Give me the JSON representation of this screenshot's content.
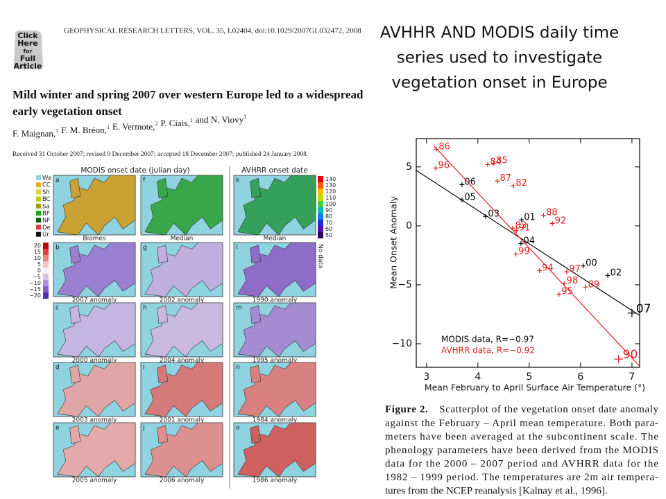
{
  "slide_title": [
    "AVHHR AND MODIS daily time",
    "series used to investigate",
    "vegetation onset in Europe"
  ],
  "logo": [
    "Click",
    "Here",
    "for",
    "Full",
    "Article"
  ],
  "journal": "GEOPHYSICAL RESEARCH LETTERS, VOL. 35, L02404, doi:10.1029/2007GL032472, 2008",
  "paper_title": [
    "Mild winter and spring 2007 over western Europe led to a widespread",
    "early vegetation onset"
  ],
  "authors": [
    {
      "name": "F. Maignan,",
      "affiliation": "1"
    },
    {
      "name": "F. M. Bréon,",
      "affiliation": "1"
    },
    {
      "name": "E. Vermote,",
      "affiliation": "2"
    },
    {
      "name": "P. Ciais,",
      "affiliation": "1"
    },
    {
      "name": "and N. Viovy",
      "affiliation": "1"
    }
  ],
  "received": "Received 31 October 2007; revised 9 December 2007; accepted 18 December 2007; published 24 January 2008.",
  "maps": {
    "headers": [
      "MODIS onset date (julian day)",
      "AVHRR onset date"
    ],
    "biomes": [
      {
        "code": "Wa",
        "color": "#8fd3e0"
      },
      {
        "code": "CC",
        "color": "#f5a623"
      },
      {
        "code": "Sh",
        "color": "#e6d23a"
      },
      {
        "code": "BC",
        "color": "#c7c41a"
      },
      {
        "code": "Sa",
        "color": "#a89a10"
      },
      {
        "code": "BF",
        "color": "#18a318"
      },
      {
        "code": "NF",
        "color": "#0b5e0b"
      },
      {
        "code": "De",
        "color": "#d94040"
      },
      {
        "code": "Ur",
        "color": "#111111"
      }
    ],
    "date_scale": [
      "140",
      "130",
      "120",
      "110",
      "100",
      "90",
      "80",
      "70",
      "60",
      "50"
    ],
    "anomaly_scale": [
      "20",
      "15",
      "10",
      "5",
      "0",
      "−5",
      "−10",
      "−15",
      "−20"
    ],
    "no_data": "No data",
    "rows": [
      [
        {
          "letter": "a",
          "caption": "Biomes",
          "color": "#c9a233"
        },
        {
          "letter": "f",
          "caption": "Median",
          "color": "#3aa64a"
        },
        {
          "letter": "k",
          "caption": "Median",
          "color": "#35a05a"
        }
      ],
      [
        {
          "letter": "b",
          "caption": "2007 anomaly",
          "color": "#9a7fd0"
        },
        {
          "letter": "g",
          "caption": "2002 anomaly",
          "color": "#c0b0e0"
        },
        {
          "letter": "l",
          "caption": "1990 anomaly",
          "color": "#8e6cc8"
        }
      ],
      [
        {
          "letter": "c",
          "caption": "2000 anomaly",
          "color": "#c5b5e2"
        },
        {
          "letter": "h",
          "caption": "2004 anomaly",
          "color": "#c8badf"
        },
        {
          "letter": "m",
          "caption": "1995 anomaly",
          "color": "#a58bd2"
        }
      ],
      [
        {
          "letter": "d",
          "caption": "2003 anomaly",
          "color": "#e0a6a6"
        },
        {
          "letter": "i",
          "caption": "2001 anomaly",
          "color": "#d47a7a"
        },
        {
          "letter": "n",
          "caption": "1984 anomaly",
          "color": "#d98080"
        }
      ],
      [
        {
          "letter": "e",
          "caption": "2005 anomaly",
          "color": "#e4a9a9"
        },
        {
          "letter": "j",
          "caption": "2006 anomaly",
          "color": "#dc9090"
        },
        {
          "letter": "o",
          "caption": "1986 anomaly",
          "color": "#d06060"
        }
      ]
    ]
  },
  "chart_data": {
    "type": "scatter",
    "xlabel": "Mean February to April Surface Air Temperature (°)",
    "ylabel": "Mean Onset Anomaly",
    "xlim": [
      2.8,
      7.15
    ],
    "ylim": [
      -12,
      7.4
    ],
    "xticks": [
      3,
      4,
      5,
      6,
      7
    ],
    "yticks": [
      5,
      0,
      {
        "value": -5,
        "label": "−5"
      },
      {
        "value": -10,
        "label": "−10"
      }
    ],
    "series": [
      {
        "name": "MODIS data, R=−0.97",
        "color": "#000000",
        "labels": [
          "06",
          "05",
          "03",
          "01",
          "04",
          "00",
          "02",
          "07"
        ],
        "x": [
          3.69,
          3.69,
          4.15,
          4.85,
          4.84,
          6.05,
          6.53,
          7.0
        ],
        "values": [
          3.5,
          2.2,
          0.8,
          0.5,
          -1.5,
          -3.4,
          -4.2,
          -7.4
        ],
        "fit": {
          "x": [
            2.8,
            7.15
          ],
          "y": [
            4.7,
            -7.6
          ]
        }
      },
      {
        "name": "AVHRR data, R=−0.92",
        "color": "#e02020",
        "labels": [
          "86",
          "96",
          "84",
          "85",
          "87",
          "82",
          "88",
          "92",
          "83",
          "91",
          "99",
          "94",
          "97",
          "98",
          "95",
          "89",
          "90"
        ],
        "x": [
          3.19,
          3.18,
          4.19,
          4.31,
          4.38,
          4.69,
          5.28,
          5.45,
          4.68,
          4.75,
          4.74,
          5.2,
          5.73,
          5.68,
          5.58,
          6.1,
          6.74
        ],
        "values": [
          6.5,
          4.9,
          5.2,
          5.3,
          3.8,
          3.4,
          0.9,
          0.2,
          -0.2,
          -0.4,
          -2.4,
          -3.8,
          -3.9,
          -4.9,
          -5.8,
          -5.2,
          -11.3
        ],
        "fit": {
          "x": [
            3.14,
            7.15
          ],
          "y": [
            6.8,
            -11.9
          ]
        }
      }
    ]
  },
  "caption_label": "Figure 2.",
  "caption_lines": [
    "Scatterplot of the vegetation onset date anomaly",
    "against the February – April mean temperature. Both para-",
    "meters have been averaged at the subcontinent scale. The",
    "phenology parameters have been derived from the MODIS",
    "data for the 2000 – 2007 period and AVHRR data for the",
    "1982 – 1999 period. The temperatures are 2m air tempera-",
    "tures from the NCEP reanalysis [Kalnay et al., 1996]."
  ]
}
